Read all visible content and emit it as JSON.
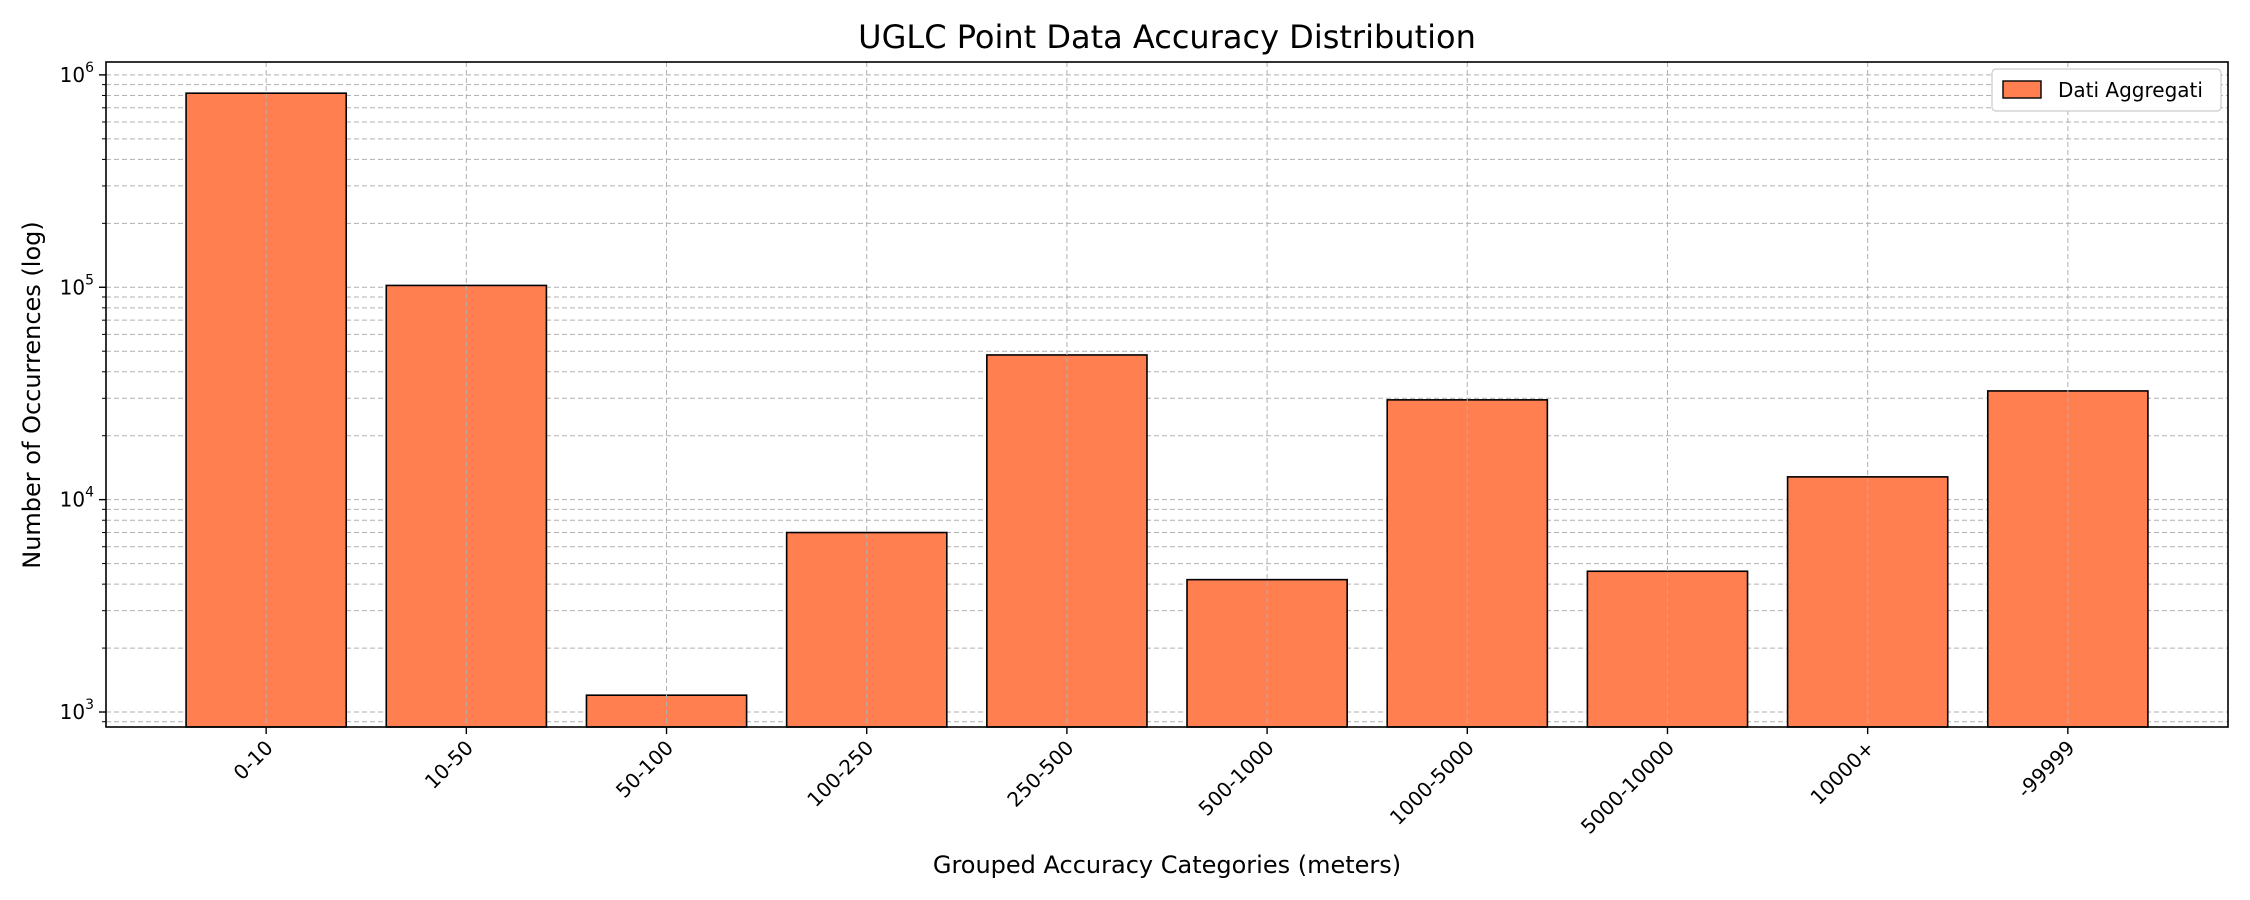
{
  "chart_data": {
    "type": "bar",
    "title": "UGLC Point Data Accuracy Distribution",
    "xlabel": "Grouped Accuracy Categories (meters)",
    "ylabel": "Number of Occurrences (log)",
    "yscale": "log",
    "ylim": [
      850,
      1150000
    ],
    "yticks": [
      {
        "value": 1000,
        "base": "10",
        "exp": "3"
      },
      {
        "value": 10000,
        "base": "10",
        "exp": "4"
      },
      {
        "value": 100000,
        "base": "10",
        "exp": "5"
      },
      {
        "value": 1000000,
        "base": "10",
        "exp": "6"
      }
    ],
    "grid": true,
    "legend_position": "top-right",
    "categories": [
      "0-10",
      "10-50",
      "50-100",
      "100-250",
      "250-500",
      "500-1000",
      "1000-5000",
      "5000-10000",
      "10000+",
      "-99999"
    ],
    "series": [
      {
        "name": "Dati Aggregati",
        "color": "#ff7f50",
        "values": [
          820000,
          102000,
          1200,
          7000,
          48000,
          4200,
          29500,
          4600,
          12800,
          32500
        ]
      }
    ]
  }
}
